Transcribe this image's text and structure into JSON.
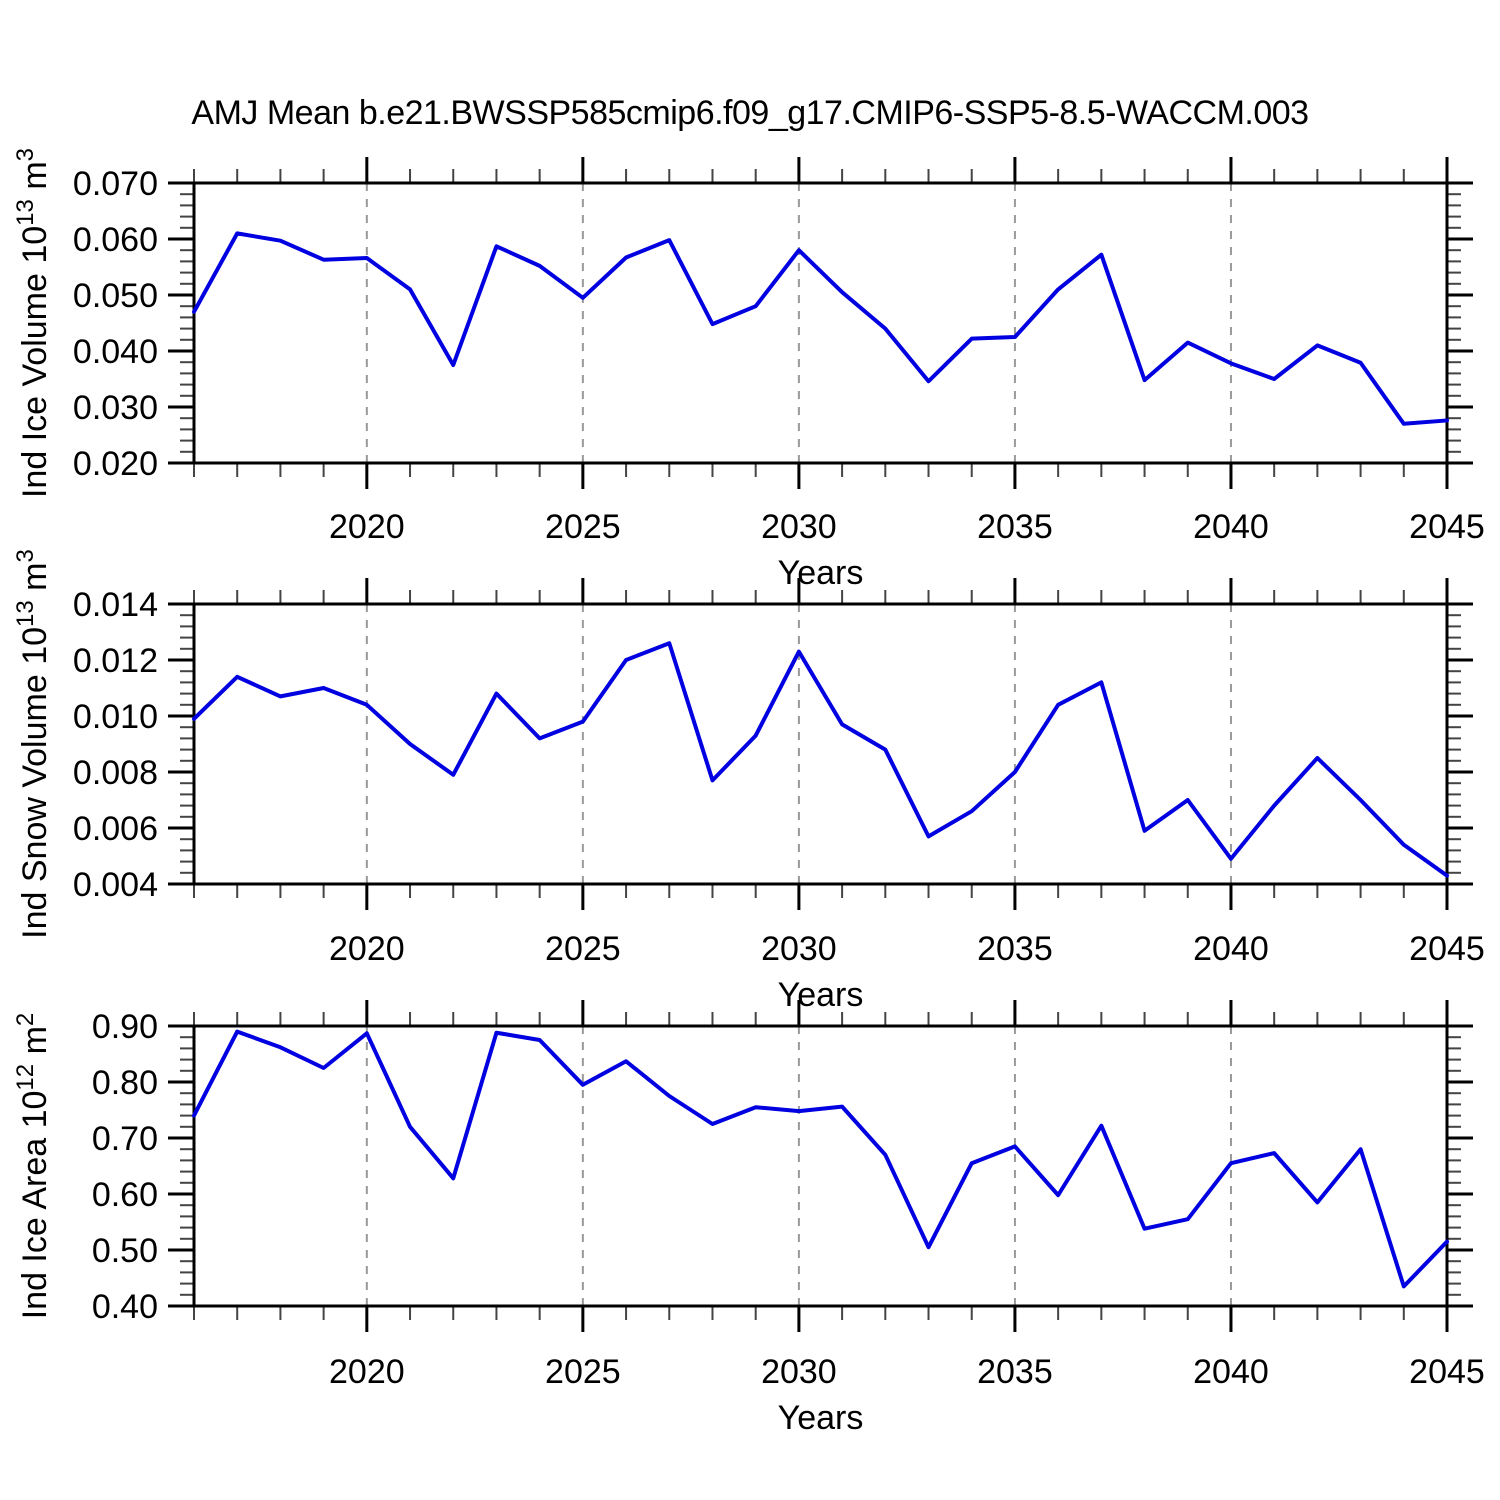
{
  "title": "AMJ Mean b.e21.BWSSP585cmip6.f09_g17.CMIP6-SSP5-8.5-WACCM.003",
  "xlabel": "Years",
  "colors": {
    "line": "#0000e0",
    "grid": "#999999",
    "axis": "#000000",
    "minor_tick": "#444444"
  },
  "x_axis": {
    "label": "Years",
    "start": 2016,
    "end": 2045,
    "minor_step": 1,
    "major_step": 5,
    "major_ticks": [
      2020,
      2025,
      2030,
      2035,
      2040,
      2045
    ],
    "gridline_years": [
      2020,
      2025,
      2030,
      2035,
      2040
    ]
  },
  "chart_data": [
    {
      "type": "line",
      "name": "ind-ice-volume",
      "ylabel": "Ind Ice Volume 10^13 m^3",
      "ylabel_segments": [
        {
          "t": "Ind Ice Volume 10"
        },
        {
          "t": "13",
          "sup": true
        },
        {
          "t": " m"
        },
        {
          "t": "3",
          "sup": true
        }
      ],
      "xlabel": "Years",
      "ylim": [
        0.02,
        0.07
      ],
      "ytick_step": 0.01,
      "y_minor_step": 0.002,
      "y_decimals": 3,
      "ytick_labels": [
        "0.020",
        "0.030",
        "0.040",
        "0.050",
        "0.060",
        "0.070"
      ],
      "grid": "x-dashed",
      "legend": "none",
      "years": [
        2016,
        2017,
        2018,
        2019,
        2020,
        2021,
        2022,
        2023,
        2024,
        2025,
        2026,
        2027,
        2028,
        2029,
        2030,
        2031,
        2032,
        2033,
        2034,
        2035,
        2036,
        2037,
        2038,
        2039,
        2040,
        2041,
        2042,
        2043,
        2044,
        2045
      ],
      "values": [
        0.047,
        0.061,
        0.0597,
        0.0563,
        0.0566,
        0.051,
        0.0375,
        0.0587,
        0.0552,
        0.0495,
        0.0567,
        0.0598,
        0.0448,
        0.048,
        0.058,
        0.0505,
        0.044,
        0.0346,
        0.0422,
        0.0425,
        0.051,
        0.0572,
        0.0348,
        0.0415,
        0.0378,
        0.035,
        0.041,
        0.0379,
        0.027,
        0.0276
      ]
    },
    {
      "type": "line",
      "name": "ind-snow-volume",
      "ylabel": "Ind Snow Volume 10^13 m^3",
      "ylabel_segments": [
        {
          "t": "Ind Snow Volume 10"
        },
        {
          "t": "13",
          "sup": true
        },
        {
          "t": " m"
        },
        {
          "t": "3",
          "sup": true
        }
      ],
      "xlabel": "Years",
      "ylim": [
        0.004,
        0.014
      ],
      "ytick_step": 0.002,
      "y_minor_step": 0.0004,
      "y_decimals": 3,
      "ytick_labels": [
        "0.004",
        "0.006",
        "0.008",
        "0.010",
        "0.012",
        "0.014"
      ],
      "grid": "x-dashed",
      "legend": "none",
      "years": [
        2016,
        2017,
        2018,
        2019,
        2020,
        2021,
        2022,
        2023,
        2024,
        2025,
        2026,
        2027,
        2028,
        2029,
        2030,
        2031,
        2032,
        2033,
        2034,
        2035,
        2036,
        2037,
        2038,
        2039,
        2040,
        2041,
        2042,
        2043,
        2044,
        2045
      ],
      "values": [
        0.0099,
        0.0114,
        0.0107,
        0.011,
        0.0104,
        0.009,
        0.0079,
        0.0108,
        0.0092,
        0.0098,
        0.012,
        0.0126,
        0.0077,
        0.0093,
        0.0123,
        0.0097,
        0.0088,
        0.0057,
        0.0066,
        0.008,
        0.0104,
        0.0112,
        0.0059,
        0.007,
        0.0049,
        0.0068,
        0.0085,
        0.007,
        0.0054,
        0.0043
      ]
    },
    {
      "type": "line",
      "name": "ind-ice-area",
      "ylabel": "Ind Ice Area 10^12 m^2",
      "ylabel_segments": [
        {
          "t": "Ind Ice Area 10"
        },
        {
          "t": "12",
          "sup": true
        },
        {
          "t": " m"
        },
        {
          "t": "2",
          "sup": true
        }
      ],
      "xlabel": "Years",
      "ylim": [
        0.4,
        0.9
      ],
      "ytick_step": 0.1,
      "y_minor_step": 0.02,
      "y_decimals": 2,
      "ytick_labels": [
        "0.40",
        "0.50",
        "0.60",
        "0.70",
        "0.80",
        "0.90"
      ],
      "grid": "x-dashed",
      "legend": "none",
      "years": [
        2016,
        2017,
        2018,
        2019,
        2020,
        2021,
        2022,
        2023,
        2024,
        2025,
        2026,
        2027,
        2028,
        2029,
        2030,
        2031,
        2032,
        2033,
        2034,
        2035,
        2036,
        2037,
        2038,
        2039,
        2040,
        2041,
        2042,
        2043,
        2044,
        2045
      ],
      "values": [
        0.74,
        0.89,
        0.862,
        0.825,
        0.887,
        0.72,
        0.628,
        0.888,
        0.875,
        0.795,
        0.837,
        0.775,
        0.725,
        0.755,
        0.748,
        0.756,
        0.67,
        0.505,
        0.655,
        0.685,
        0.598,
        0.722,
        0.538,
        0.555,
        0.655,
        0.673,
        0.585,
        0.68,
        0.435,
        0.515
      ]
    }
  ]
}
